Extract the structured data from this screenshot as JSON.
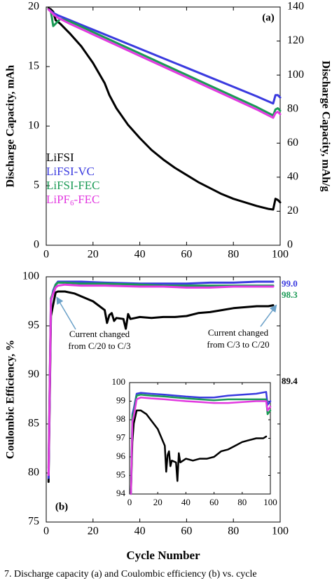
{
  "chart_data": [
    {
      "type": "line",
      "panel_label": "(a)",
      "xlabel": "",
      "ylabel": "Discharge Capacity, mAh",
      "y2label": "Discharge Capacity, mAh/g",
      "xlim": [
        0,
        100
      ],
      "ylim": [
        0,
        20
      ],
      "y2lim": [
        0,
        140
      ],
      "xticks": [
        0,
        20,
        40,
        60,
        80,
        100
      ],
      "yticks": [
        0,
        5,
        10,
        15,
        20
      ],
      "y2ticks": [
        0,
        20,
        40,
        60,
        80,
        100,
        120,
        140
      ],
      "grid": false,
      "legend": "bottom-left",
      "series": [
        {
          "name": "LiFSI",
          "color": "#000000",
          "x": [
            1,
            2,
            3,
            4,
            6,
            10,
            15,
            20,
            25,
            27,
            30,
            35,
            40,
            45,
            50,
            55,
            60,
            65,
            70,
            75,
            80,
            85,
            90,
            95,
            97,
            98,
            99,
            100
          ],
          "y": [
            19.9,
            19.8,
            19.6,
            18.9,
            18.6,
            17.8,
            16.7,
            15.3,
            13.6,
            12.6,
            11.5,
            10.1,
            9.0,
            8.0,
            7.2,
            6.5,
            5.9,
            5.3,
            4.8,
            4.3,
            3.9,
            3.6,
            3.3,
            3.05,
            3.0,
            3.9,
            3.8,
            3.6
          ]
        },
        {
          "name": "LiFSI-VC",
          "color": "#3a3adf",
          "x": [
            1,
            3,
            5,
            10,
            20,
            30,
            40,
            50,
            60,
            70,
            80,
            90,
            97,
            98,
            99,
            100
          ],
          "y": [
            19.8,
            19.5,
            19.3,
            18.9,
            18.1,
            17.3,
            16.5,
            15.7,
            14.9,
            14.1,
            13.3,
            12.5,
            11.9,
            12.6,
            12.6,
            12.4
          ]
        },
        {
          "name": "LiFSI-FEC",
          "color": "#1a9a55",
          "x": [
            1,
            2,
            3,
            4,
            6,
            10,
            20,
            30,
            40,
            50,
            60,
            70,
            80,
            90,
            97,
            98,
            99,
            100
          ],
          "y": [
            19.8,
            19.6,
            18.4,
            18.6,
            19.0,
            18.8,
            17.9,
            17.0,
            16.1,
            15.2,
            14.3,
            13.4,
            12.5,
            11.6,
            10.9,
            11.4,
            11.5,
            11.3
          ]
        },
        {
          "name": "LiPF6-FEC",
          "color": "#e23ae0",
          "x": [
            1,
            3,
            5,
            10,
            20,
            30,
            40,
            50,
            60,
            70,
            80,
            90,
            97,
            98,
            99,
            100
          ],
          "y": [
            19.8,
            19.4,
            19.1,
            18.6,
            17.7,
            16.8,
            15.9,
            15.0,
            14.1,
            13.2,
            12.3,
            11.4,
            10.7,
            11.1,
            11.2,
            11.0
          ]
        }
      ]
    },
    {
      "type": "line",
      "panel_label": "(b)",
      "xlabel": "Cycle Number",
      "ylabel": "Coulombic Efficiency, %",
      "xlim": [
        0,
        100
      ],
      "ylim": [
        75,
        100
      ],
      "xticks": [
        0,
        20,
        40,
        60,
        80,
        100
      ],
      "yticks": [
        75,
        80,
        85,
        90,
        95,
        100
      ],
      "grid": false,
      "annotations": [
        {
          "text_lines": [
            "Current changed",
            "from C/20 to C/3"
          ],
          "arrow_to": [
            3,
            98.2
          ]
        },
        {
          "text_lines": [
            "Current changed",
            "from C/3 to C/20"
          ],
          "arrow_to": [
            99,
            97.4
          ]
        }
      ],
      "end_labels": [
        {
          "text": "99.0",
          "color": "#3a3adf",
          "y": 99.0
        },
        {
          "text": "98.3",
          "color": "#1a9a55",
          "y": 98.3
        },
        {
          "text": "89.4",
          "color": "#000000",
          "y": 89.4
        }
      ],
      "series": [
        {
          "name": "LiFSI",
          "color": "#000000",
          "x": [
            1,
            2,
            3,
            4,
            5,
            8,
            12,
            20,
            25,
            26,
            27,
            28,
            29,
            30,
            33,
            34,
            35,
            36,
            38,
            40,
            45,
            50,
            55,
            60,
            65,
            70,
            75,
            80,
            85,
            90,
            95,
            97
          ],
          "y": [
            79.1,
            96.0,
            97.2,
            98.4,
            98.5,
            98.5,
            98.3,
            97.5,
            96.6,
            95.3,
            96.1,
            96.3,
            95.5,
            95.8,
            95.7,
            94.7,
            96.2,
            95.7,
            95.8,
            95.9,
            95.8,
            95.9,
            95.9,
            96.0,
            96.3,
            96.4,
            96.6,
            96.8,
            96.9,
            97.0,
            97.0,
            97.1
          ]
        },
        {
          "name": "LiFSI-VC",
          "color": "#3a3adf",
          "x": [
            1,
            2,
            3,
            4,
            5,
            8,
            15,
            25,
            40,
            50,
            60,
            70,
            80,
            90,
            97
          ],
          "y": [
            79.5,
            97.5,
            98.6,
            99.2,
            99.5,
            99.5,
            99.5,
            99.4,
            99.3,
            99.3,
            99.3,
            99.4,
            99.4,
            99.5,
            99.5
          ]
        },
        {
          "name": "LiFSI-FEC",
          "color": "#1a9a55",
          "x": [
            1,
            2,
            3,
            4,
            5,
            8,
            15,
            25,
            40,
            50,
            60,
            70,
            80,
            90,
            97
          ],
          "y": [
            80.5,
            97.8,
            98.4,
            99.2,
            99.4,
            99.4,
            99.3,
            99.3,
            99.2,
            99.1,
            99.1,
            99.1,
            99.1,
            99.1,
            99.1
          ]
        },
        {
          "name": "LiPF6-FEC",
          "color": "#e23ae0",
          "x": [
            1,
            2,
            3,
            4,
            5,
            8,
            15,
            25,
            40,
            50,
            60,
            70,
            80,
            90,
            97
          ],
          "y": [
            79.8,
            97.6,
            98.3,
            98.9,
            99.1,
            99.2,
            99.1,
            99.1,
            99.0,
            99.0,
            98.9,
            98.9,
            99.0,
            99.0,
            99.0
          ]
        }
      ]
    },
    {
      "type": "line",
      "panel_label": "inset",
      "xlim": [
        0,
        100
      ],
      "ylim": [
        94,
        100
      ],
      "xticks": [
        0,
        20,
        40,
        60,
        80,
        100
      ],
      "yticks": [
        94,
        95,
        96,
        97,
        98,
        99,
        100
      ],
      "series": [
        {
          "name": "LiFSI",
          "color": "#000000",
          "x": [
            1,
            2,
            3,
            5,
            8,
            12,
            20,
            25,
            26,
            27,
            28,
            29,
            30,
            33,
            34,
            35,
            36,
            38,
            40,
            45,
            50,
            55,
            60,
            65,
            70,
            75,
            80,
            85,
            90,
            95,
            97
          ],
          "y": [
            94.0,
            96.8,
            97.8,
            98.5,
            98.5,
            98.3,
            97.5,
            96.6,
            95.2,
            96.1,
            96.3,
            95.5,
            95.8,
            95.7,
            94.7,
            96.2,
            95.7,
            95.8,
            95.9,
            95.8,
            95.9,
            95.9,
            96.0,
            96.3,
            96.4,
            96.6,
            96.8,
            96.9,
            97.0,
            97.0,
            97.1
          ]
        },
        {
          "name": "LiFSI-VC",
          "color": "#3a3adf",
          "x": [
            1,
            2,
            3,
            5,
            8,
            15,
            25,
            40,
            50,
            60,
            70,
            80,
            90,
            97,
            98,
            99,
            100
          ],
          "y": [
            94.0,
            98.3,
            98.6,
            99.4,
            99.45,
            99.4,
            99.35,
            99.25,
            99.2,
            99.2,
            99.3,
            99.35,
            99.4,
            99.5,
            98.8,
            98.9,
            99.0
          ]
        },
        {
          "name": "LiFSI-FEC",
          "color": "#1a9a55",
          "x": [
            1,
            2,
            3,
            5,
            8,
            15,
            25,
            40,
            50,
            60,
            70,
            80,
            90,
            97,
            98,
            99,
            100
          ],
          "y": [
            94.0,
            98.2,
            98.4,
            99.3,
            99.35,
            99.3,
            99.25,
            99.15,
            99.1,
            99.05,
            99.1,
            99.1,
            99.1,
            99.1,
            98.3,
            98.4,
            98.5
          ]
        },
        {
          "name": "LiPF6-FEC",
          "color": "#e23ae0",
          "x": [
            1,
            2,
            3,
            5,
            8,
            15,
            25,
            40,
            50,
            60,
            70,
            80,
            90,
            97,
            98,
            99,
            100
          ],
          "y": [
            94.0,
            97.9,
            98.2,
            99.1,
            99.2,
            99.15,
            99.1,
            99.0,
            98.95,
            98.9,
            98.9,
            98.95,
            99.0,
            99.0,
            98.5,
            98.6,
            98.7
          ]
        }
      ]
    }
  ],
  "caption": "7.  Discharge capacity (a) and Coulombic efficiency (b) vs. cycle"
}
